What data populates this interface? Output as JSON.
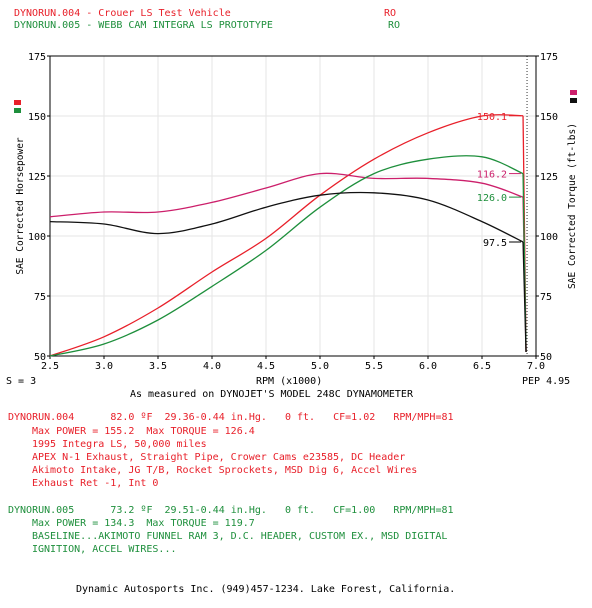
{
  "header": {
    "run1": {
      "label": "DYNORUN.004 - Crouer LS Test Vehicle",
      "tag": "RO"
    },
    "run2": {
      "label": "DYNORUN.005 - WEBB CAM INTEGRA LS PROTOTYPE",
      "tag": "RO"
    }
  },
  "chart_data": {
    "type": "line",
    "xlabel": "RPM (x1000)",
    "ylabel_left": "SAE Corrected Horsepower",
    "ylabel_right": "SAE Corrected Torque (ft-lbs)",
    "xlim": [
      2.5,
      7.0
    ],
    "ylim": [
      50,
      175
    ],
    "x_ticks": [
      "2.5",
      "3.0",
      "3.5",
      "4.0",
      "4.5",
      "5.0",
      "5.5",
      "6.0",
      "6.5",
      "7.0"
    ],
    "y_ticks": [
      "50",
      "75",
      "100",
      "125",
      "150",
      "175"
    ],
    "grid": true,
    "series": [
      {
        "run": "DYNORUN.004",
        "measure": "horsepower",
        "color": "#e8202a",
        "x": [
          2.5,
          3.0,
          3.5,
          4.0,
          4.5,
          5.0,
          5.5,
          6.0,
          6.5,
          6.88
        ],
        "y": [
          50,
          58,
          70,
          85,
          99,
          117,
          132,
          143,
          150,
          150.1
        ]
      },
      {
        "run": "DYNORUN.004",
        "measure": "torque",
        "color": "#cc1f6b",
        "x": [
          2.5,
          3.0,
          3.5,
          4.0,
          4.5,
          5.0,
          5.5,
          6.0,
          6.5,
          6.88
        ],
        "y": [
          108,
          110,
          110,
          114,
          120,
          126,
          124,
          124,
          122,
          116.2
        ]
      },
      {
        "run": "DYNORUN.005",
        "measure": "horsepower",
        "color": "#1e8f3c",
        "x": [
          2.5,
          3.0,
          3.5,
          4.0,
          4.5,
          5.0,
          5.5,
          6.0,
          6.5,
          6.88
        ],
        "y": [
          50,
          55,
          65,
          79,
          94,
          112,
          126,
          132,
          133,
          126.0
        ]
      },
      {
        "run": "DYNORUN.005",
        "measure": "torque",
        "color": "#111111",
        "x": [
          2.5,
          3.0,
          3.5,
          4.0,
          4.5,
          5.0,
          5.5,
          6.0,
          6.5,
          6.88
        ],
        "y": [
          106,
          105,
          101,
          105,
          112,
          117,
          118,
          115,
          106,
          97.5
        ]
      }
    ],
    "end_labels": [
      "150.1",
      "126.0",
      "116.2",
      "97.5"
    ]
  },
  "smoothing": "S = 3",
  "pep": "PEP 4.95",
  "caption": "As measured on DYNOJET'S MODEL 248C DYNAMOMETER",
  "run1_info": {
    "line1": "DYNORUN.004      82.0 ºF  29.36-0.44 in.Hg.   0 ft.   CF=1.02   RPM/MPH=81",
    "line2": "Max POWER = 155.2  Max TORQUE = 126.4",
    "line3": "1995 Integra LS, 50,000 miles",
    "line4": "APEX N-1 Exhaust, Straight Pipe, Crower Cams e23585, DC Header",
    "line5": "Akimoto Intake, JG T/B, Rocket Sprockets, MSD Dig 6, Accel Wires",
    "line6": "Exhaust Ret -1, Int 0"
  },
  "run2_info": {
    "line1": "DYNORUN.005      73.2 ºF  29.51-0.44 in.Hg.   0 ft.   CF=1.00   RPM/MPH=81",
    "line2": "Max POWER = 134.3  Max TORQUE = 119.7",
    "line3": "BASELINE...AKIMOTO FUNNEL RAM 3, D.C. HEADER, CUSTOM EX., MSD DIGITAL",
    "line4": "IGNITION, ACCEL WIRES..."
  },
  "footer": "Dynamic Autosports Inc. (949)457-1234. Lake Forest, California."
}
